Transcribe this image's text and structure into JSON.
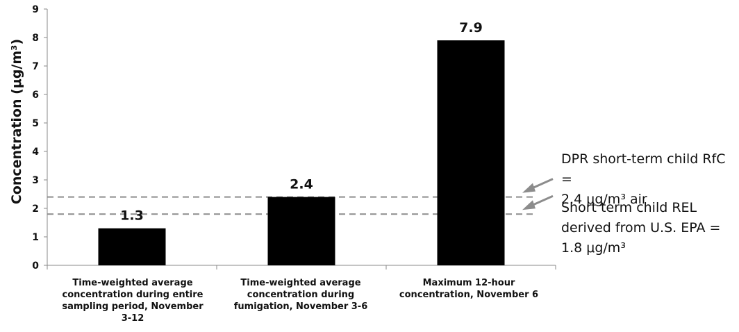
{
  "chart_data": {
    "type": "bar",
    "categories": [
      "Time-weighted average concentration during entire sampling period, November 3-12",
      "Time-weighted average concentration during fumigation, November 3-6",
      "Maximum 12-hour concentration, November 6"
    ],
    "values": [
      1.3,
      2.4,
      7.9
    ],
    "data_labels": [
      "1.3",
      "2.4",
      "7.9"
    ],
    "ylabel": "Concentration (μg/m³)",
    "ylim": [
      0,
      9
    ],
    "yticks": [
      "0",
      "1",
      "2",
      "3",
      "4",
      "5",
      "6",
      "7",
      "8",
      "9"
    ],
    "bar_color": "#000000",
    "grid": false,
    "reference_lines": [
      {
        "value": 2.4,
        "label": "DPR short-term child RfC =\n2.4 μg/m³ air",
        "color": "#8c8c8c"
      },
      {
        "value": 1.8,
        "label": "Short term child REL\nderived from U.S. EPA =\n1.8 μg/m³",
        "color": "#8c8c8c"
      }
    ]
  }
}
